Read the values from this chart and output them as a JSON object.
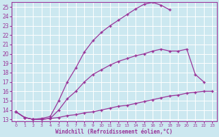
{
  "xlabel": "Windchill (Refroidissement éolien,°C)",
  "bg_color": "#cce8f0",
  "line_color": "#993399",
  "grid_color": "#b0d8e4",
  "xlim": [
    -0.5,
    23.5
  ],
  "ylim": [
    12.8,
    25.5
  ],
  "yticks": [
    13,
    14,
    15,
    16,
    17,
    18,
    19,
    20,
    21,
    22,
    23,
    24,
    25
  ],
  "xticks": [
    0,
    1,
    2,
    3,
    4,
    5,
    6,
    7,
    8,
    9,
    10,
    11,
    12,
    13,
    14,
    15,
    16,
    17,
    18,
    19,
    20,
    21,
    22,
    23
  ],
  "line1_x": [
    0,
    1,
    2,
    3,
    4,
    5,
    6,
    7,
    8,
    9,
    10,
    11,
    12,
    13,
    14,
    15,
    16,
    17,
    18,
    19,
    20,
    21,
    22,
    23
  ],
  "line1_y": [
    13.8,
    13.2,
    13.0,
    13.0,
    13.1,
    13.2,
    13.4,
    13.5,
    13.7,
    13.8,
    14.0,
    14.2,
    14.4,
    14.5,
    14.7,
    14.9,
    15.1,
    15.3,
    15.5,
    15.6,
    15.8,
    15.9,
    16.0,
    16.0
  ],
  "line2_x": [
    0,
    1,
    2,
    3,
    4,
    5,
    6,
    7,
    8,
    9,
    10,
    11,
    12,
    13,
    14,
    15,
    16,
    17,
    18,
    19,
    20,
    21,
    22
  ],
  "line2_y": [
    13.8,
    13.2,
    13.0,
    13.0,
    13.1,
    14.0,
    15.2,
    16.0,
    17.0,
    17.8,
    18.3,
    18.8,
    19.2,
    19.5,
    19.8,
    20.0,
    20.3,
    20.5,
    20.3,
    20.3,
    20.5,
    17.8,
    17.0
  ],
  "line3_x": [
    0,
    1,
    2,
    3,
    4,
    5,
    6,
    7,
    8,
    9,
    10,
    11,
    12,
    13,
    14,
    15,
    16,
    17,
    18
  ],
  "line3_y": [
    13.8,
    13.2,
    13.0,
    13.1,
    13.3,
    15.0,
    17.0,
    18.5,
    20.2,
    21.4,
    22.3,
    23.0,
    23.6,
    24.2,
    24.8,
    25.3,
    25.5,
    25.2,
    24.7
  ]
}
